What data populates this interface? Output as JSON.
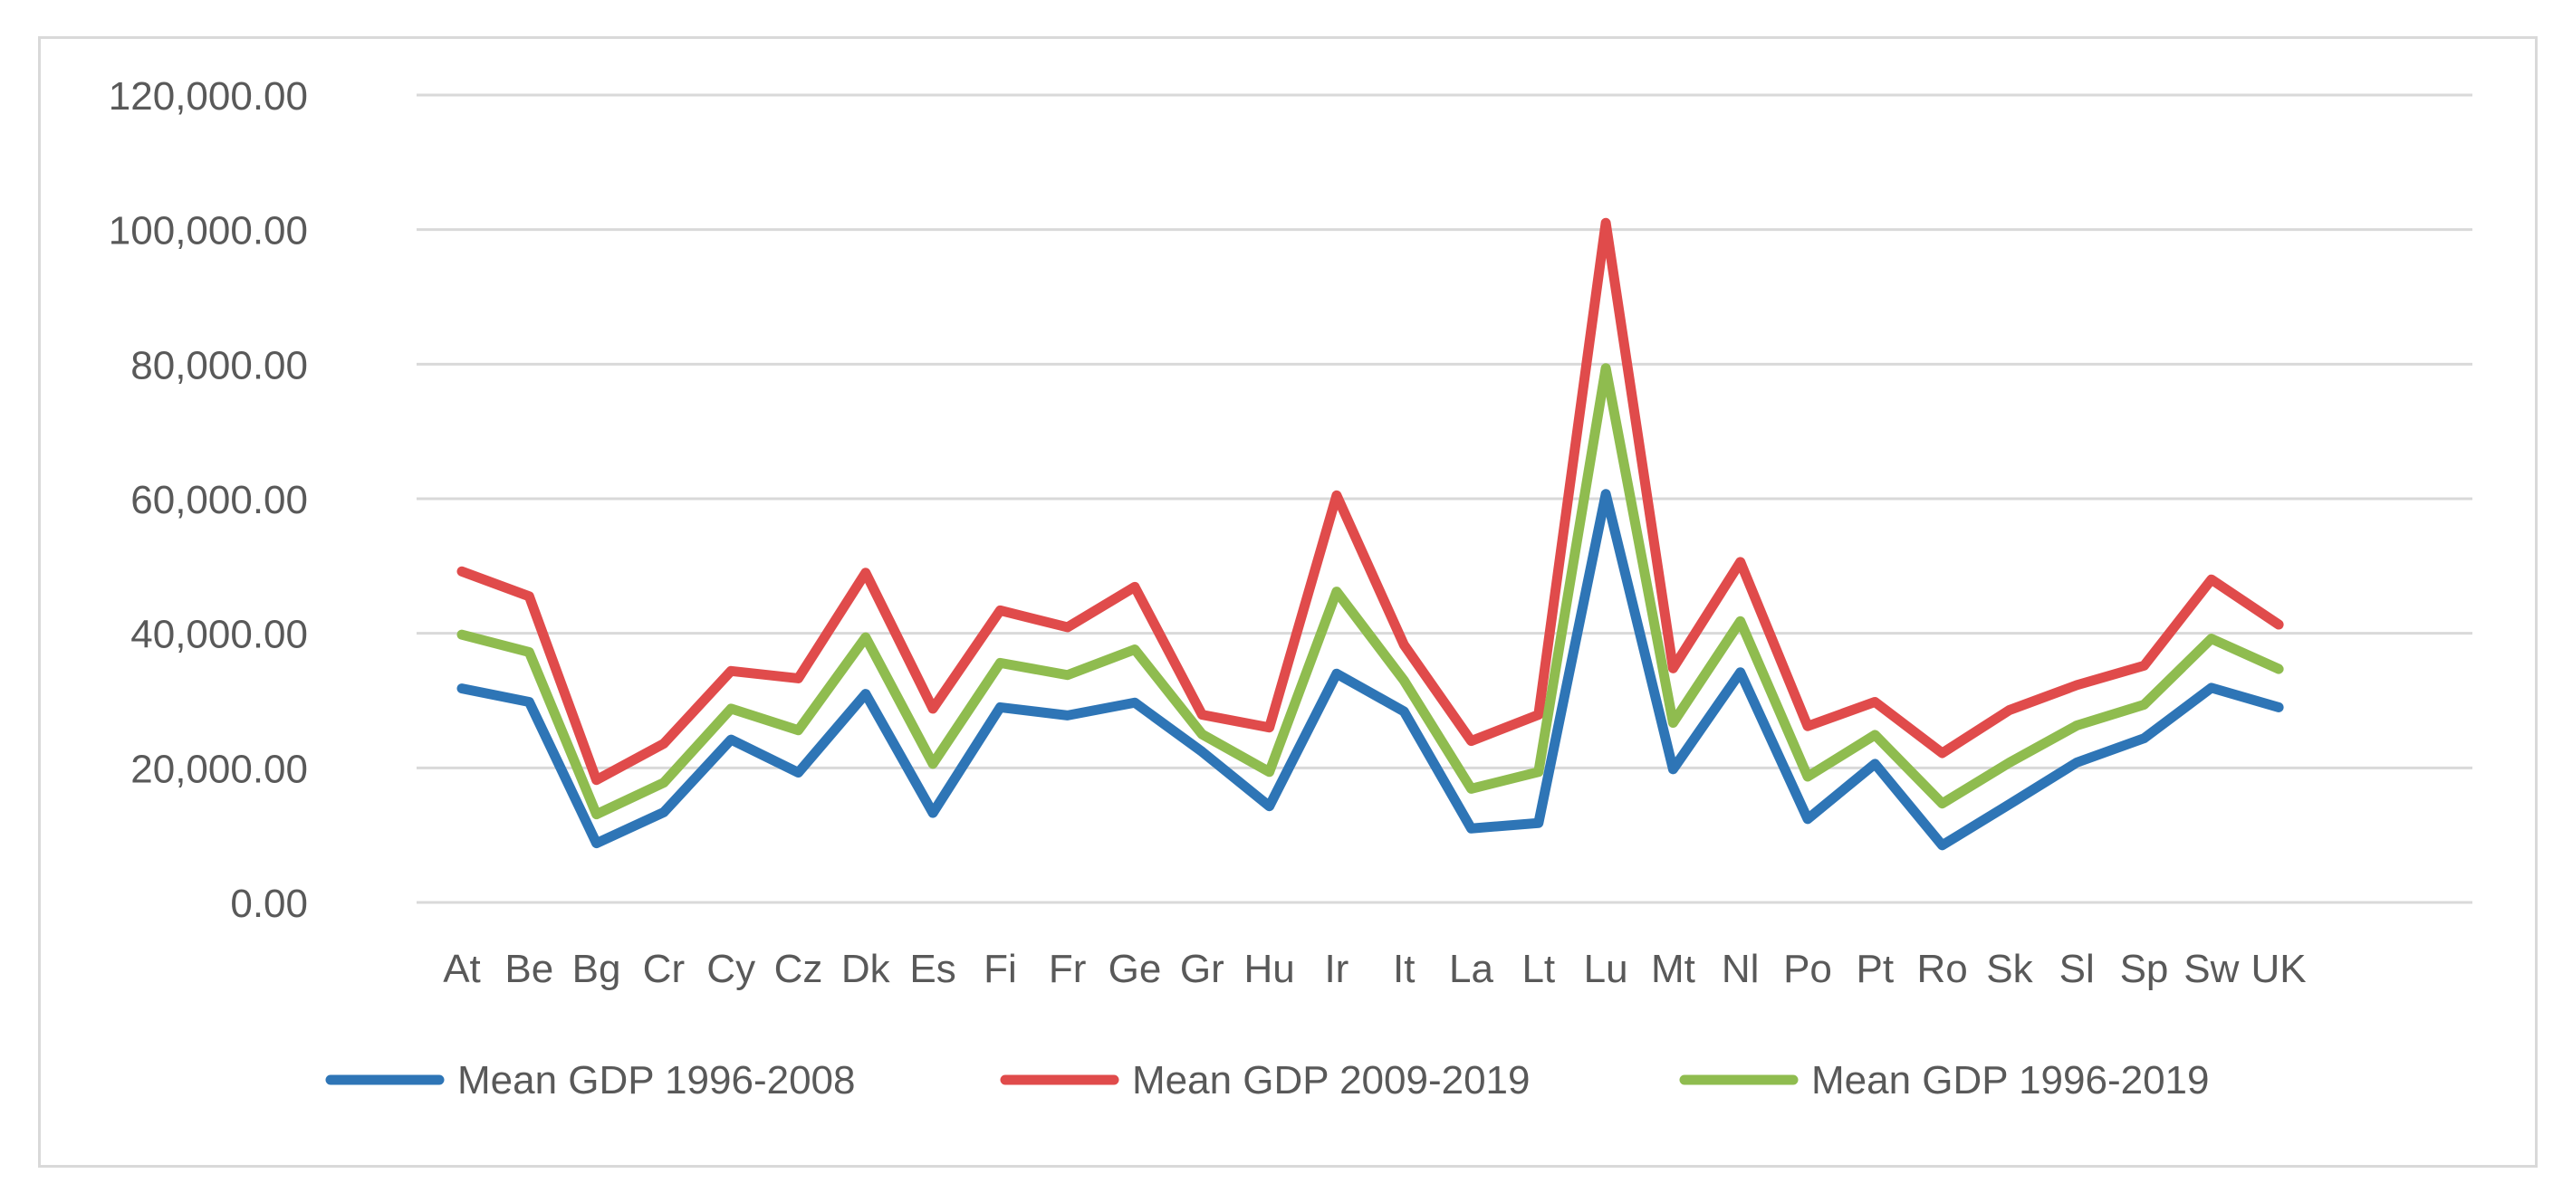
{
  "chart_data": {
    "type": "line",
    "title": "",
    "xlabel": "",
    "ylabel": "",
    "categories": [
      "At",
      "Be",
      "Bg",
      "Cr",
      "Cy",
      "Cz",
      "Dk",
      "Es",
      "Fi",
      "Fr",
      "Ge",
      "Gr",
      "Hu",
      "Ir",
      "It",
      "La",
      "Lt",
      "Lu",
      "Mt",
      "Nl",
      "Po",
      "Pt",
      "Ro",
      "Sk",
      "Sl",
      "Sp",
      "Sw",
      "UK"
    ],
    "ylim": [
      0,
      120000
    ],
    "yticks": [
      "0.00",
      "20,000.00",
      "40,000.00",
      "60,000.00",
      "80,000.00",
      "100,000.00",
      "120,000.00"
    ],
    "ytick_values": [
      0,
      20000,
      40000,
      60000,
      80000,
      100000,
      120000
    ],
    "grid": true,
    "legend_position": "bottom",
    "series": [
      {
        "name": "Mean GDP 1996-2008",
        "color": "#2e75b6",
        "values": [
          31800,
          29800,
          8800,
          13400,
          24200,
          19300,
          31000,
          13300,
          29000,
          27800,
          29700,
          22400,
          14300,
          34000,
          28400,
          11000,
          11800,
          60700,
          19800,
          34200,
          12400,
          20600,
          8500,
          14600,
          20800,
          24400,
          31900,
          29000
        ]
      },
      {
        "name": "Mean GDP 2009-2019",
        "color": "#e04b4b",
        "values": [
          49200,
          45500,
          18200,
          23600,
          34400,
          33300,
          49000,
          28800,
          43400,
          40900,
          46900,
          27900,
          26000,
          60500,
          38300,
          24000,
          27900,
          101000,
          34800,
          50600,
          26200,
          29800,
          22200,
          28600,
          32300,
          35200,
          48000,
          41300
        ]
      },
      {
        "name": "Mean GDP 1996-2019",
        "color": "#8fbc4f",
        "values": [
          39800,
          37200,
          13100,
          17800,
          28800,
          25600,
          39400,
          20600,
          35600,
          33800,
          37600,
          25000,
          19400,
          46200,
          33000,
          16900,
          19400,
          79400,
          26700,
          41800,
          18700,
          24900,
          14700,
          20800,
          26300,
          29400,
          39200,
          34700
        ]
      }
    ]
  }
}
